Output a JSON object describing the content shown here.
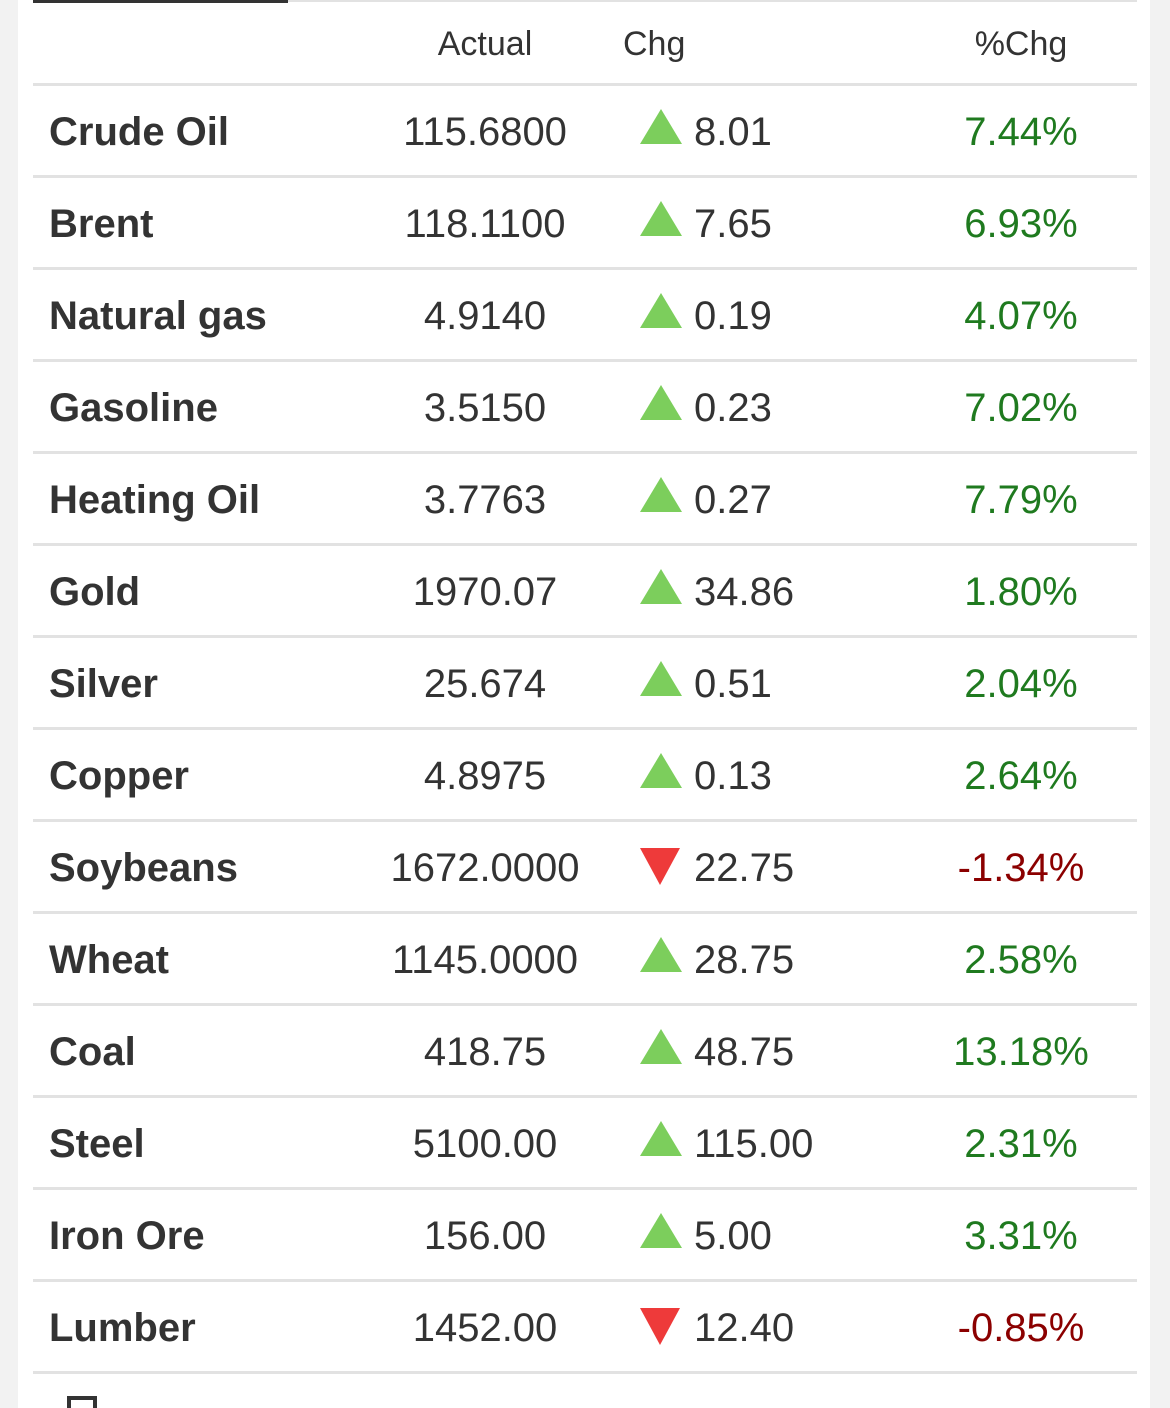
{
  "table": {
    "headers": {
      "name": "",
      "actual": "Actual",
      "chg": "Chg",
      "pct": "%Chg"
    },
    "rows": [
      {
        "name": "Crude Oil",
        "actual": "115.6800",
        "direction": "up",
        "chg": "8.01",
        "pct": "7.44%"
      },
      {
        "name": "Brent",
        "actual": "118.1100",
        "direction": "up",
        "chg": "7.65",
        "pct": "6.93%"
      },
      {
        "name": "Natural gas",
        "actual": "4.9140",
        "direction": "up",
        "chg": "0.19",
        "pct": "4.07%"
      },
      {
        "name": "Gasoline",
        "actual": "3.5150",
        "direction": "up",
        "chg": "0.23",
        "pct": "7.02%"
      },
      {
        "name": "Heating Oil",
        "actual": "3.7763",
        "direction": "up",
        "chg": "0.27",
        "pct": "7.79%"
      },
      {
        "name": "Gold",
        "actual": "1970.07",
        "direction": "up",
        "chg": "34.86",
        "pct": "1.80%"
      },
      {
        "name": "Silver",
        "actual": "25.674",
        "direction": "up",
        "chg": "0.51",
        "pct": "2.04%"
      },
      {
        "name": "Copper",
        "actual": "4.8975",
        "direction": "up",
        "chg": "0.13",
        "pct": "2.64%"
      },
      {
        "name": "Soybeans",
        "actual": "1672.0000",
        "direction": "down",
        "chg": "22.75",
        "pct": "-1.34%"
      },
      {
        "name": "Wheat",
        "actual": "1145.0000",
        "direction": "up",
        "chg": "28.75",
        "pct": "2.58%"
      },
      {
        "name": "Coal",
        "actual": "418.75",
        "direction": "up",
        "chg": "48.75",
        "pct": "13.18%"
      },
      {
        "name": "Steel",
        "actual": "5100.00",
        "direction": "up",
        "chg": "115.00",
        "pct": "2.31%"
      },
      {
        "name": "Iron Ore",
        "actual": "156.00",
        "direction": "up",
        "chg": "5.00",
        "pct": "3.31%"
      },
      {
        "name": "Lumber",
        "actual": "1452.00",
        "direction": "down",
        "chg": "12.40",
        "pct": "-0.85%"
      }
    ]
  },
  "colors": {
    "up_arrow": "#7cce5c",
    "down_arrow": "#ee3a3a",
    "positive_text": "#1f7a1f",
    "negative_text": "#8b0000",
    "text": "#333333",
    "divider": "#e2e2e2"
  },
  "icons": {
    "up": "triangle-up-icon",
    "down": "triangle-down-icon"
  }
}
